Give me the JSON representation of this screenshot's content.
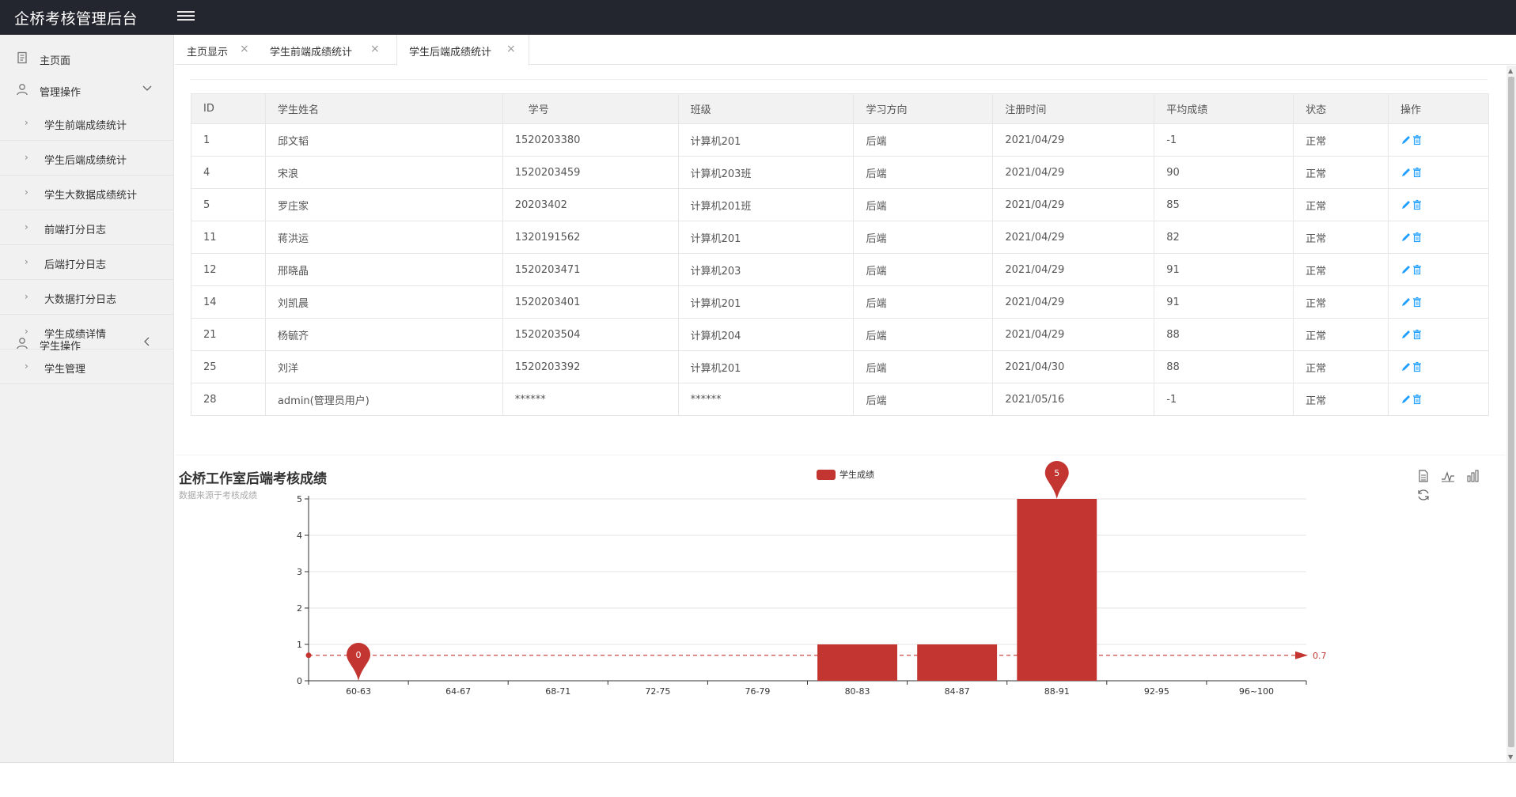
{
  "app": {
    "title": "企桥考核管理后台"
  },
  "sidebar": {
    "home": "主页面",
    "manage": "管理操作",
    "sub_items": [
      "学生前端成绩统计",
      "学生后端成绩统计",
      "学生大数据成绩统计",
      "前端打分日志",
      "后端打分日志",
      "大数据打分日志",
      "学生成绩详情",
      "学生管理"
    ],
    "student_ops": "学生操作"
  },
  "tabs": [
    {
      "label": "主页显示",
      "active": false
    },
    {
      "label": "学生前端成绩统计",
      "active": false
    },
    {
      "label": "学生后端成绩统计",
      "active": true
    }
  ],
  "table": {
    "headers": [
      "ID",
      "学生姓名",
      "学号",
      "班级",
      "学习方向",
      "注册时间",
      "平均成绩",
      "状态",
      "操作"
    ],
    "rows": [
      [
        "1",
        "邱文韬",
        "1520203380",
        "计算机201",
        "后端",
        "2021/04/29",
        "-1",
        "正常"
      ],
      [
        "4",
        "宋浪",
        "1520203459",
        "计算机203班",
        "后端",
        "2021/04/29",
        "90",
        "正常"
      ],
      [
        "5",
        "罗庄家",
        "20203402",
        "计算机201班",
        "后端",
        "2021/04/29",
        "85",
        "正常"
      ],
      [
        "11",
        "蒋洪运",
        "1320191562",
        "计算机201",
        "后端",
        "2021/04/29",
        "82",
        "正常"
      ],
      [
        "12",
        "邢晓晶",
        "1520203471",
        "计算机203",
        "后端",
        "2021/04/29",
        "91",
        "正常"
      ],
      [
        "14",
        "刘凯晨",
        "1520203401",
        "计算机201",
        "后端",
        "2021/04/29",
        "91",
        "正常"
      ],
      [
        "21",
        "杨毓齐",
        "1520203504",
        "计算机204",
        "后端",
        "2021/04/29",
        "88",
        "正常"
      ],
      [
        "25",
        "刘洋",
        "1520203392",
        "计算机201",
        "后端",
        "2021/04/30",
        "88",
        "正常"
      ],
      [
        "28",
        "admin(管理员用户)",
        "******",
        "******",
        "后端",
        "2021/05/16",
        "-1",
        "正常"
      ]
    ]
  },
  "colors": {
    "header_bg": "#23262e",
    "bar": "#c23531",
    "edit_icon": "#1e9fff"
  },
  "chart_data": {
    "type": "bar",
    "title": "企桥工作室后端考核成绩",
    "subtitle": "数据来源于考核成绩",
    "legend": "学生成绩",
    "legend_position": "top-center",
    "categories": [
      "60-63",
      "64-67",
      "68-71",
      "72-75",
      "76-79",
      "80-83",
      "84-87",
      "88-91",
      "92-95",
      "96~100"
    ],
    "series": [
      {
        "name": "学生成绩",
        "values": [
          0,
          0,
          0,
          0,
          0,
          1,
          1,
          5,
          0,
          0
        ]
      }
    ],
    "ylim": [
      0,
      5
    ],
    "yticks": [
      "0",
      "1",
      "2",
      "3",
      "4",
      "5"
    ],
    "grid": true,
    "mark_points": [
      {
        "label": "0",
        "category": "60-63",
        "value": 0
      },
      {
        "label": "5",
        "category": "88-91",
        "value": 5
      }
    ],
    "mark_line": {
      "label": "0.7",
      "value": 0.7
    }
  }
}
